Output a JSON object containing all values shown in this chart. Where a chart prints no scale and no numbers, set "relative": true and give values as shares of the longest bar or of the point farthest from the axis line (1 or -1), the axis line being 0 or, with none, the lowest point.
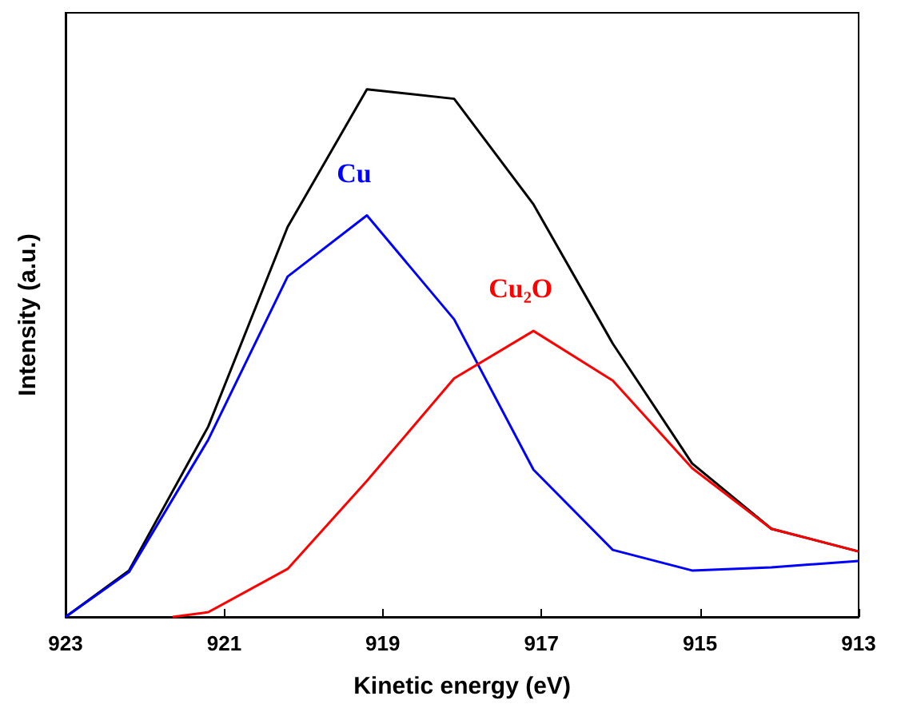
{
  "chart_data": {
    "type": "line",
    "xlabel": "Kinetic energy (eV)",
    "ylabel": "Intensity (a.u.)",
    "relative": true,
    "xlim": [
      923,
      913
    ],
    "xticks": [
      923,
      921,
      919,
      917,
      915,
      913
    ],
    "grid": false,
    "legend": false,
    "series": [
      {
        "color": "#000000",
        "x": [
          923,
          922.2,
          921.2,
          920.2,
          919.2,
          918.1,
          917.1,
          916.1,
          915.1,
          914.1,
          913
        ],
        "values": [
          0,
          0.088,
          0.361,
          0.739,
          1,
          0.982,
          0.782,
          0.518,
          0.291,
          0.167,
          0.124
        ]
      },
      {
        "name": "Cu",
        "color": "#0000ff",
        "x": [
          923,
          922.2,
          921.2,
          920.2,
          919.2,
          918.1,
          917.1,
          916.1,
          915.1,
          914.1,
          913
        ],
        "values": [
          0,
          0.085,
          0.336,
          0.645,
          0.761,
          0.564,
          0.279,
          0.127,
          0.088,
          0.094,
          0.106
        ]
      },
      {
        "name": "Cu₂O",
        "color": "#ff0000",
        "x": [
          921.65,
          921.2,
          920.2,
          919.2,
          918.1,
          917.1,
          916.1,
          915.1,
          914.1,
          913
        ],
        "values": [
          0,
          0.009,
          0.091,
          0.258,
          0.452,
          0.542,
          0.448,
          0.282,
          0.167,
          0.124
        ]
      }
    ]
  }
}
